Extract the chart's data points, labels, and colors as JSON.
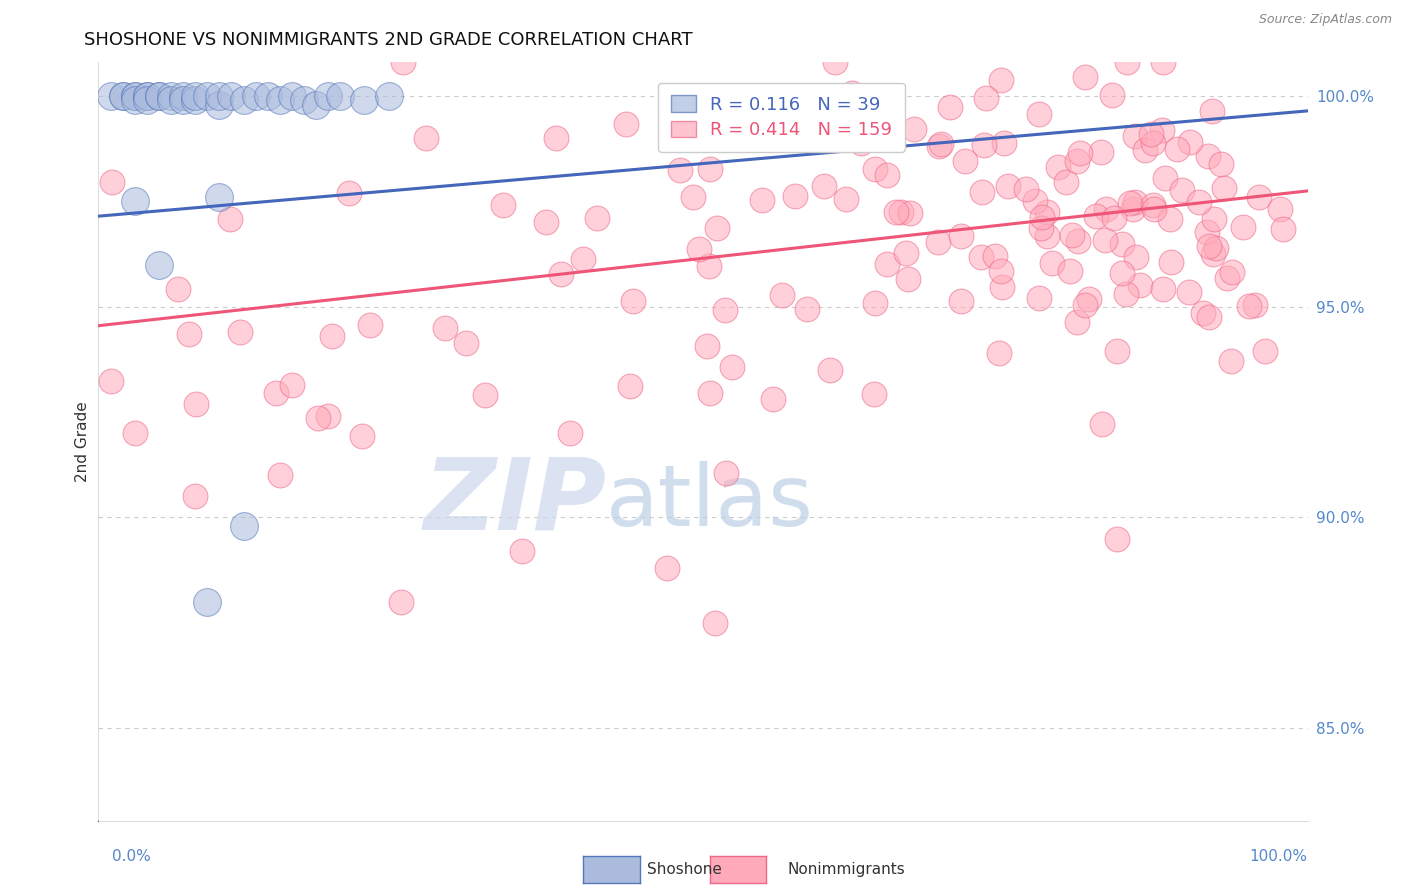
{
  "title": "SHOSHONE VS NONIMMIGRANTS 2ND GRADE CORRELATION CHART",
  "source": "Source: ZipAtlas.com",
  "ylabel": "2nd Grade",
  "blue_R": 0.116,
  "blue_N": 39,
  "pink_R": 0.414,
  "pink_N": 159,
  "legend_label_blue": "Shoshone",
  "legend_label_pink": "Nonimmigrants",
  "blue_face_color": "#aabbdd",
  "blue_edge_color": "#5577bb",
  "pink_face_color": "#ffaabb",
  "pink_edge_color": "#ee6688",
  "blue_line_color": "#4466bb",
  "pink_line_color": "#ee5577",
  "title_color": "#111111",
  "right_tick_color": "#5588cc",
  "grid_color": "#cccccc",
  "background_color": "#ffffff",
  "xlim": [
    0.0,
    1.0
  ],
  "ylim": [
    0.828,
    1.008
  ],
  "ytick_vals": [
    0.85,
    0.9,
    0.95,
    1.0
  ],
  "blue_trend_y0": 0.9715,
  "blue_trend_y1": 0.9965,
  "pink_trend_y0": 0.9455,
  "pink_trend_y1": 0.9775,
  "seed": 7
}
